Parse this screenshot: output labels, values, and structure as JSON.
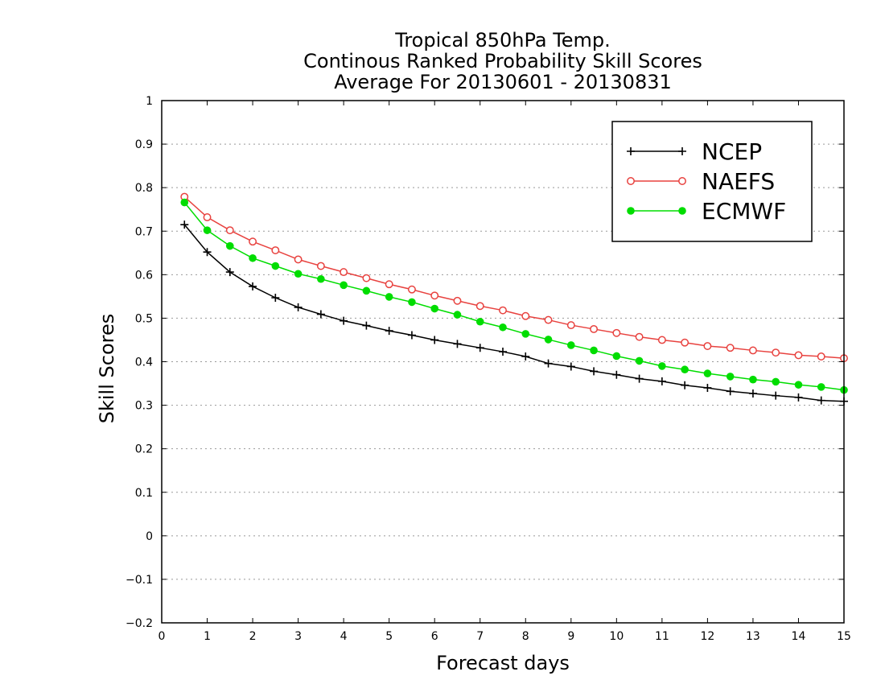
{
  "chart_data": {
    "type": "line",
    "title": [
      "Tropical 850hPa Temp.",
      "Continous Ranked Probability Skill Scores",
      "Average For 20130601 - 20130831"
    ],
    "xlabel": "Forecast days",
    "ylabel": "Skill Scores",
    "xlim": [
      0,
      15
    ],
    "ylim": [
      -0.2,
      1
    ],
    "xticks": [
      0,
      1,
      2,
      3,
      4,
      5,
      6,
      7,
      8,
      9,
      10,
      11,
      12,
      13,
      14,
      15
    ],
    "yticks": [
      -0.2,
      -0.1,
      0,
      0.1,
      0.2,
      0.3,
      0.4,
      0.5,
      0.6,
      0.7,
      0.8,
      0.9,
      1
    ],
    "ytick_labels": [
      "−0.2",
      "−0.1",
      "0",
      "0.1",
      "0.2",
      "0.3",
      "0.4",
      "0.5",
      "0.6",
      "0.7",
      "0.8",
      "0.9",
      "1"
    ],
    "grid": "horizontal dotted",
    "legend_position": "top-right",
    "x": [
      0.5,
      1,
      1.5,
      2,
      2.5,
      3,
      3.5,
      4,
      4.5,
      5,
      5.5,
      6,
      6.5,
      7,
      7.5,
      8,
      8.5,
      9,
      9.5,
      10,
      10.5,
      11,
      11.5,
      12,
      12.5,
      13,
      13.5,
      14,
      14.5,
      15
    ],
    "series": [
      {
        "name": "NCEP",
        "color": "#000000",
        "marker": "plus",
        "values": [
          0.715,
          0.652,
          0.606,
          0.573,
          0.547,
          0.525,
          0.509,
          0.494,
          0.483,
          0.471,
          0.461,
          0.45,
          0.441,
          0.432,
          0.423,
          0.412,
          0.396,
          0.389,
          0.378,
          0.37,
          0.361,
          0.355,
          0.346,
          0.34,
          0.332,
          0.327,
          0.322,
          0.318,
          0.311,
          0.309
        ]
      },
      {
        "name": "NAEFS",
        "color": "#e8423f",
        "marker": "open-circle",
        "values": [
          0.779,
          0.732,
          0.702,
          0.676,
          0.656,
          0.635,
          0.62,
          0.606,
          0.592,
          0.578,
          0.566,
          0.552,
          0.54,
          0.528,
          0.518,
          0.505,
          0.496,
          0.484,
          0.475,
          0.466,
          0.457,
          0.45,
          0.444,
          0.436,
          0.432,
          0.426,
          0.421,
          0.415,
          0.412,
          0.408
        ]
      },
      {
        "name": "ECMWF",
        "color": "#00dd00",
        "marker": "filled-circle",
        "values": [
          0.766,
          0.702,
          0.666,
          0.638,
          0.62,
          0.602,
          0.59,
          0.576,
          0.563,
          0.549,
          0.537,
          0.522,
          0.508,
          0.492,
          0.479,
          0.464,
          0.451,
          0.438,
          0.426,
          0.413,
          0.402,
          0.39,
          0.382,
          0.373,
          0.366,
          0.359,
          0.354,
          0.347,
          0.342,
          0.335
        ]
      }
    ]
  }
}
